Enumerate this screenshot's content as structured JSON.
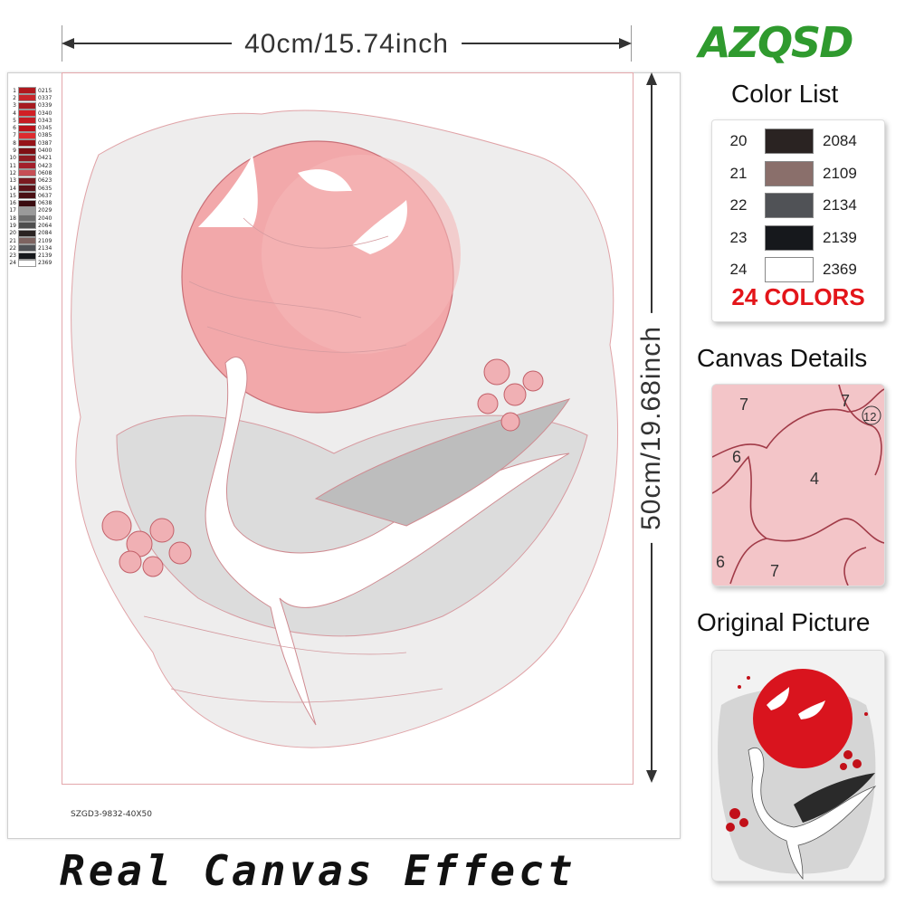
{
  "brand": {
    "logo_text": "AZQSD",
    "color": "#2f9a2e"
  },
  "dimensions": {
    "width_label": "40cm/15.74inch",
    "height_label": "50cm/19.68inch"
  },
  "product_code": "SZGD3-9832-40X50",
  "footer_caption": "Real Canvas Effect",
  "legend": [
    {
      "num": "1",
      "code": "0215",
      "color": "#b0191e"
    },
    {
      "num": "2",
      "code": "0337",
      "color": "#c8262b"
    },
    {
      "num": "3",
      "code": "0339",
      "color": "#a71a1f"
    },
    {
      "num": "4",
      "code": "0340",
      "color": "#d11f25"
    },
    {
      "num": "5",
      "code": "0343",
      "color": "#c51b23"
    },
    {
      "num": "6",
      "code": "0345",
      "color": "#b9121a"
    },
    {
      "num": "7",
      "code": "0385",
      "color": "#de2b2f"
    },
    {
      "num": "8",
      "code": "0387",
      "color": "#961318"
    },
    {
      "num": "9",
      "code": "0400",
      "color": "#7e0f14"
    },
    {
      "num": "10",
      "code": "0421",
      "color": "#8e1b22"
    },
    {
      "num": "11",
      "code": "0423",
      "color": "#a31e2a"
    },
    {
      "num": "12",
      "code": "0608",
      "color": "#c64e55"
    },
    {
      "num": "13",
      "code": "0623",
      "color": "#7a1a20"
    },
    {
      "num": "14",
      "code": "0635",
      "color": "#5a1218"
    },
    {
      "num": "15",
      "code": "0637",
      "color": "#4a0f13"
    },
    {
      "num": "16",
      "code": "0638",
      "color": "#3a0c10"
    },
    {
      "num": "17",
      "code": "2029",
      "color": "#9a9a9a"
    },
    {
      "num": "18",
      "code": "2040",
      "color": "#6d6d6d"
    },
    {
      "num": "19",
      "code": "2064",
      "color": "#4e4e4e"
    },
    {
      "num": "20",
      "code": "2084",
      "color": "#2a2322"
    },
    {
      "num": "21",
      "code": "2109",
      "color": "#7d6360"
    },
    {
      "num": "22",
      "code": "2134",
      "color": "#505256"
    },
    {
      "num": "23",
      "code": "2139",
      "color": "#16181c"
    },
    {
      "num": "24",
      "code": "2369",
      "color": "#ffffff"
    }
  ],
  "color_list": {
    "title": "Color List",
    "rows": [
      {
        "num": "20",
        "code": "2084",
        "color": "#2a2322"
      },
      {
        "num": "21",
        "code": "2109",
        "color": "#8a6f6b"
      },
      {
        "num": "22",
        "code": "2134",
        "color": "#505256"
      },
      {
        "num": "23",
        "code": "2139",
        "color": "#16181c"
      },
      {
        "num": "24",
        "code": "2369",
        "color": "#ffffff"
      }
    ],
    "count_label": "24 COLORS",
    "count_color": "#e3151a"
  },
  "canvas_details": {
    "title": "Canvas Details",
    "region_numbers": [
      "7",
      "7",
      "12",
      "6",
      "4",
      "6",
      "7"
    ]
  },
  "original_picture": {
    "title": "Original Picture"
  }
}
